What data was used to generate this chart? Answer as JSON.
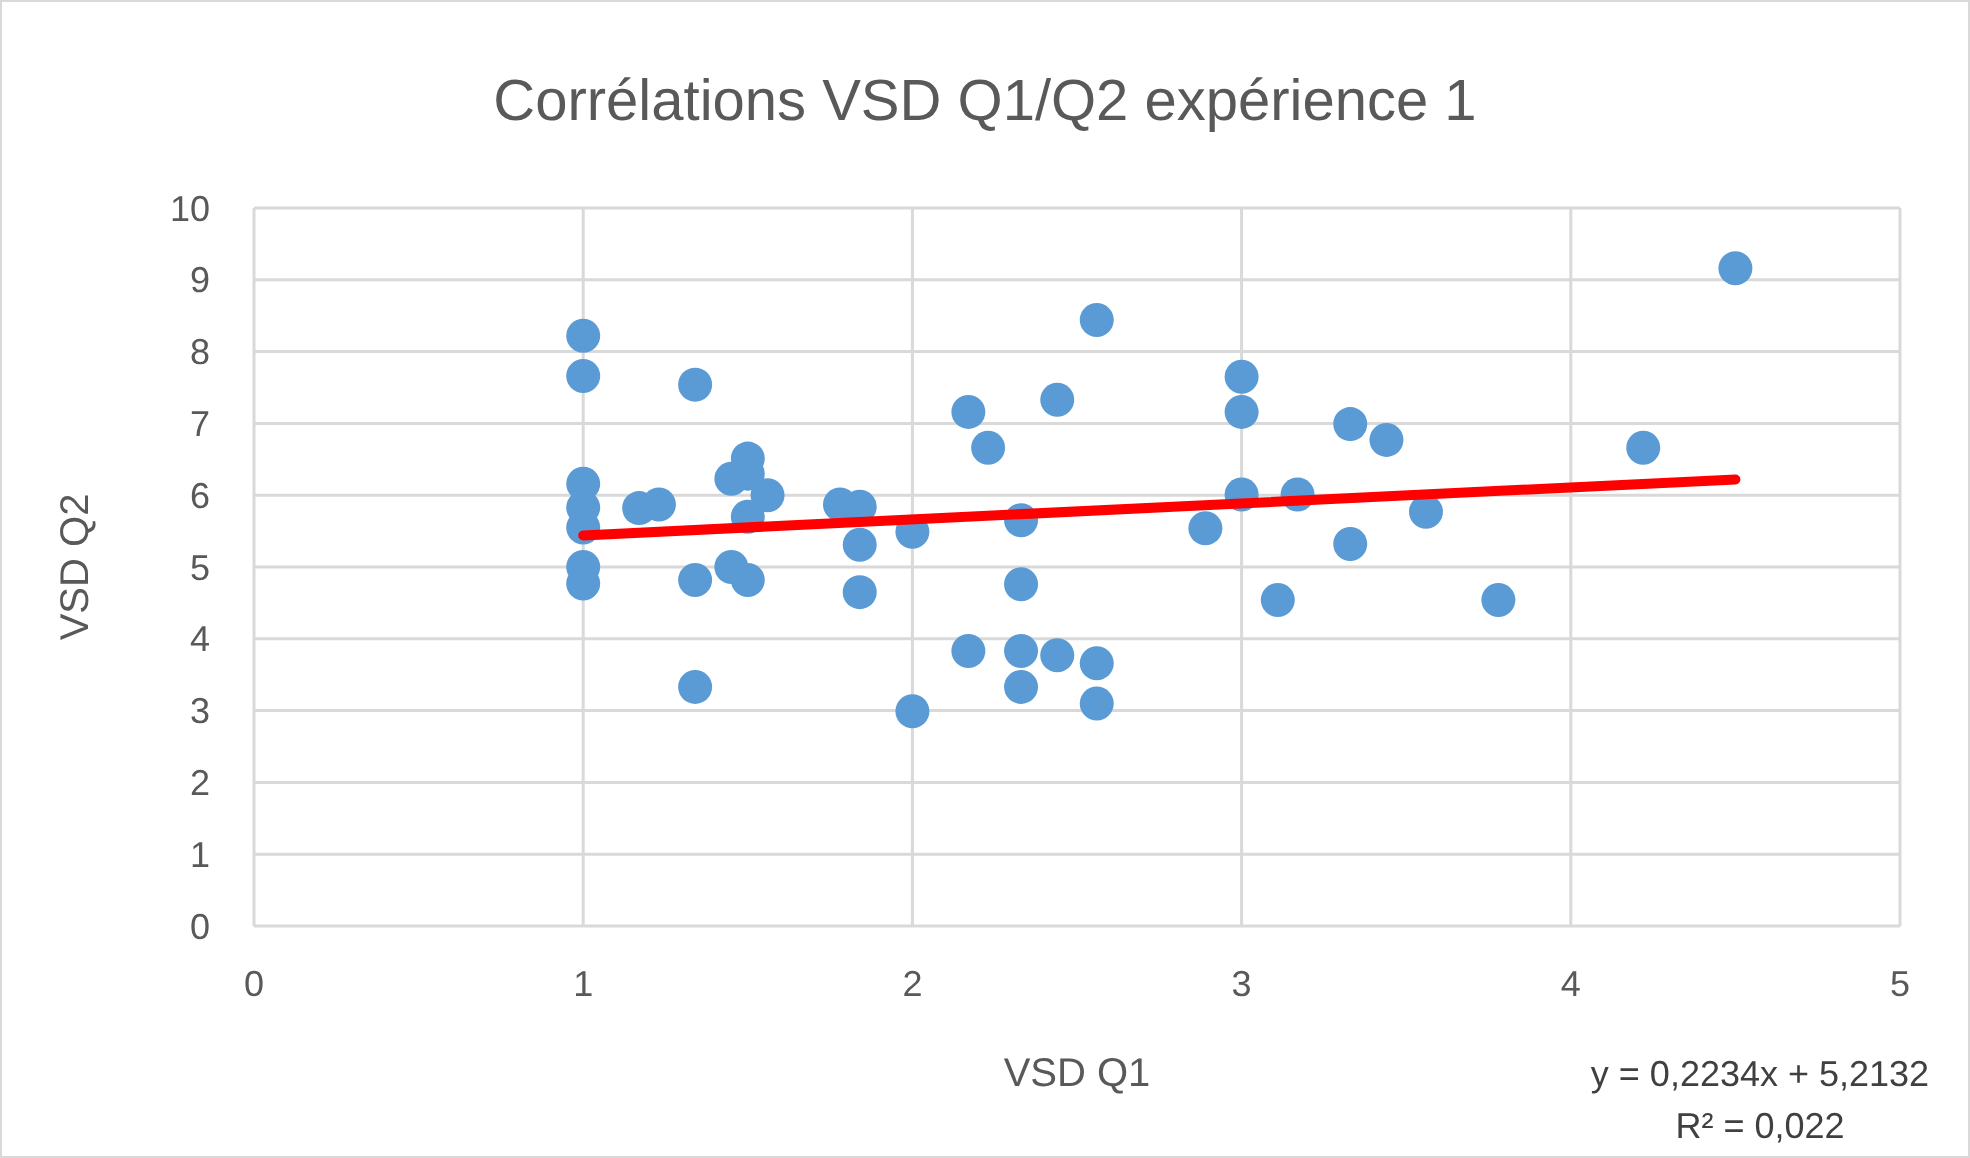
{
  "chart_data": {
    "type": "scatter",
    "title": "Corrélations VSD Q1/Q2 expérience 1",
    "xlabel": "VSD Q1",
    "ylabel": "VSD Q2",
    "xlim": [
      0,
      5
    ],
    "xticks": [
      0,
      1,
      2,
      3,
      4,
      5
    ],
    "ylim": [
      0,
      10
    ],
    "yticks": [
      0,
      1,
      2,
      3,
      4,
      5,
      6,
      7,
      8,
      9,
      10
    ],
    "grid": true,
    "marker": "circle",
    "series": [
      {
        "color": "#5b9bd5",
        "x": [
          1,
          1,
          1,
          1,
          1,
          1,
          1,
          1.17,
          1.23,
          1.34,
          1.5,
          1.45,
          1.5,
          1.56,
          1.5,
          1.34,
          1.45,
          1.5,
          1.34,
          1.78,
          1.84,
          1.84,
          1.84,
          2.0,
          2.0,
          2.17,
          2.23,
          2.44,
          2.56,
          2.33,
          2.33,
          2.17,
          2.33,
          2.44,
          2.56,
          2.33,
          2.56,
          2.89,
          3.0,
          3.0,
          3.0,
          3.17,
          3.11,
          3.33,
          3.44,
          3.33,
          3.56,
          3.78,
          4.22,
          4.5
        ],
        "values": [
          8.22,
          7.66,
          6.16,
          5.83,
          5.55,
          5.0,
          4.77,
          5.82,
          5.87,
          7.54,
          6.51,
          6.23,
          6.3,
          6.0,
          5.7,
          4.82,
          5.0,
          4.82,
          3.33,
          5.87,
          5.84,
          5.31,
          4.65,
          5.49,
          2.99,
          7.16,
          6.66,
          7.33,
          8.44,
          5.65,
          4.76,
          3.83,
          3.83,
          3.77,
          3.66,
          3.33,
          3.1,
          5.54,
          7.65,
          7.16,
          6.01,
          6.01,
          4.54,
          6.99,
          6.77,
          5.32,
          5.77,
          4.54,
          6.66,
          9.16
        ]
      },
      {
        "type": "line",
        "color": "#ff0000",
        "marker": "none",
        "x": [
          1,
          4.5
        ],
        "values": [
          5.44,
          6.22
        ]
      }
    ],
    "annotations": [
      "y = 0,2234x + 5,2132",
      "R² = 0,022"
    ]
  }
}
